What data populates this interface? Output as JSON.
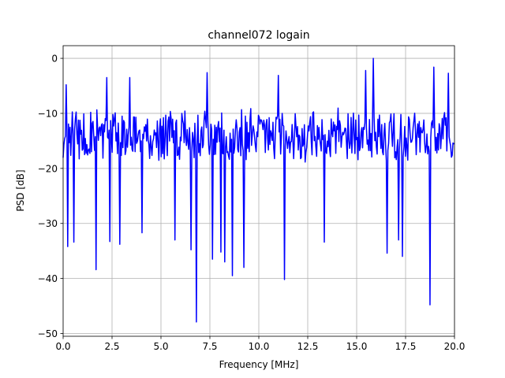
{
  "chart_data": {
    "type": "line",
    "title": "channel072 logain",
    "xlabel": "Frequency [MHz]",
    "ylabel": "PSD [dB]",
    "xlim": [
      0,
      20
    ],
    "ylim": [
      -50.5,
      2.3
    ],
    "xticks": [
      0,
      2.5,
      5,
      7.5,
      10,
      12.5,
      15,
      17.5,
      20
    ],
    "xtick_labels": [
      "0.0",
      "2.5",
      "5.0",
      "7.5",
      "10.0",
      "12.5",
      "15.0",
      "17.5",
      "20.0"
    ],
    "yticks": [
      0,
      -10,
      -20,
      -30,
      -40,
      -50
    ],
    "ytick_labels": [
      "0",
      "−10",
      "−20",
      "−30",
      "−40",
      "−50"
    ],
    "grid": true,
    "series": [
      {
        "color": "#0000ff",
        "baseline": -14,
        "spread": 4,
        "points": 512,
        "peaks": [
          [
            0.15,
            -4.8
          ],
          [
            2.25,
            -3.5
          ],
          [
            3.4,
            -3.5
          ],
          [
            7.35,
            -2.6
          ],
          [
            11.0,
            -3.1
          ],
          [
            15.45,
            -2.2
          ],
          [
            15.85,
            0.0
          ],
          [
            18.95,
            -1.6
          ],
          [
            19.7,
            -2.7
          ]
        ],
        "dips": [
          [
            0.25,
            -34.2
          ],
          [
            0.55,
            -33.4
          ],
          [
            1.7,
            -38.4
          ],
          [
            2.4,
            -33.3
          ],
          [
            2.9,
            -33.8
          ],
          [
            4.05,
            -31.7
          ],
          [
            5.7,
            -33.0
          ],
          [
            6.55,
            -34.8
          ],
          [
            6.8,
            -47.9
          ],
          [
            7.65,
            -36.5
          ],
          [
            8.05,
            -35.2
          ],
          [
            8.25,
            -37.0
          ],
          [
            8.65,
            -39.5
          ],
          [
            9.25,
            -38.0
          ],
          [
            11.3,
            -40.2
          ],
          [
            13.35,
            -33.4
          ],
          [
            16.55,
            -35.4
          ],
          [
            17.15,
            -33.0
          ],
          [
            17.35,
            -36.0
          ],
          [
            18.75,
            -44.8
          ]
        ]
      }
    ]
  }
}
